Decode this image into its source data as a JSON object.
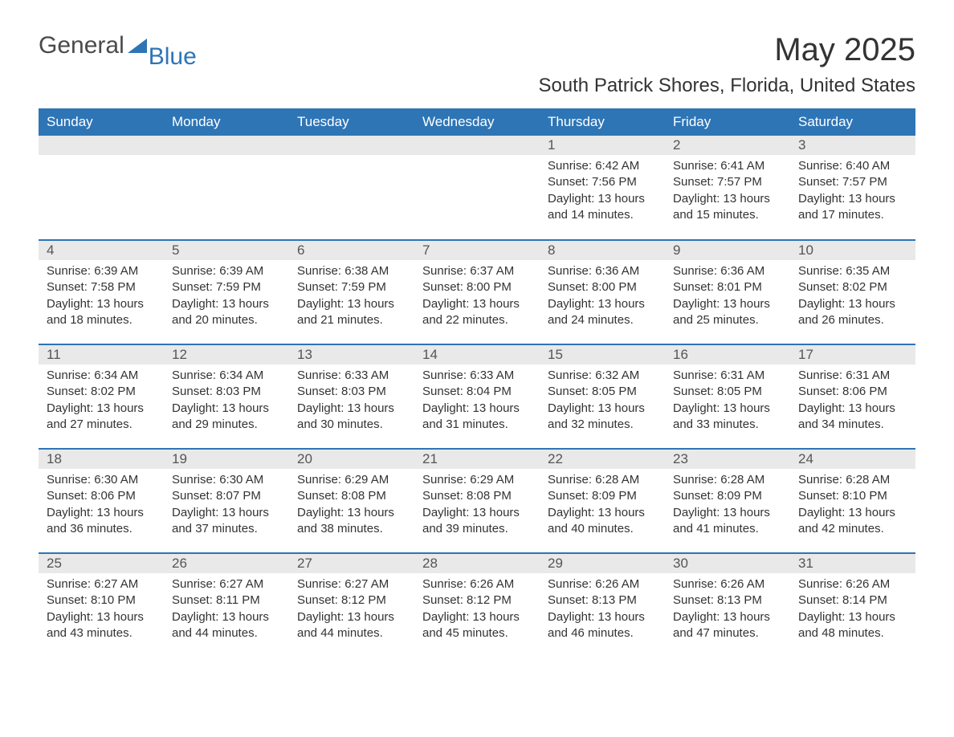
{
  "logo": {
    "text1": "General",
    "text2": "Blue",
    "color1": "#4a4a4a",
    "color2": "#2e75b6"
  },
  "title": "May 2025",
  "subtitle": "South Patrick Shores, Florida, United States",
  "colors": {
    "header_bg": "#2e75b6",
    "header_text": "#ffffff",
    "daynum_bg": "#e9e9e9",
    "daynum_text": "#555555",
    "body_text": "#333333",
    "week_border": "#2e75b6",
    "page_bg": "#ffffff"
  },
  "fonts": {
    "title_size": 40,
    "subtitle_size": 24,
    "header_size": 17,
    "daynum_size": 17,
    "body_size": 15,
    "family": "Arial"
  },
  "day_names": [
    "Sunday",
    "Monday",
    "Tuesday",
    "Wednesday",
    "Thursday",
    "Friday",
    "Saturday"
  ],
  "weeks": [
    [
      null,
      null,
      null,
      null,
      {
        "n": "1",
        "sunrise": "6:42 AM",
        "sunset": "7:56 PM",
        "daylight": "13 hours and 14 minutes."
      },
      {
        "n": "2",
        "sunrise": "6:41 AM",
        "sunset": "7:57 PM",
        "daylight": "13 hours and 15 minutes."
      },
      {
        "n": "3",
        "sunrise": "6:40 AM",
        "sunset": "7:57 PM",
        "daylight": "13 hours and 17 minutes."
      }
    ],
    [
      {
        "n": "4",
        "sunrise": "6:39 AM",
        "sunset": "7:58 PM",
        "daylight": "13 hours and 18 minutes."
      },
      {
        "n": "5",
        "sunrise": "6:39 AM",
        "sunset": "7:59 PM",
        "daylight": "13 hours and 20 minutes."
      },
      {
        "n": "6",
        "sunrise": "6:38 AM",
        "sunset": "7:59 PM",
        "daylight": "13 hours and 21 minutes."
      },
      {
        "n": "7",
        "sunrise": "6:37 AM",
        "sunset": "8:00 PM",
        "daylight": "13 hours and 22 minutes."
      },
      {
        "n": "8",
        "sunrise": "6:36 AM",
        "sunset": "8:00 PM",
        "daylight": "13 hours and 24 minutes."
      },
      {
        "n": "9",
        "sunrise": "6:36 AM",
        "sunset": "8:01 PM",
        "daylight": "13 hours and 25 minutes."
      },
      {
        "n": "10",
        "sunrise": "6:35 AM",
        "sunset": "8:02 PM",
        "daylight": "13 hours and 26 minutes."
      }
    ],
    [
      {
        "n": "11",
        "sunrise": "6:34 AM",
        "sunset": "8:02 PM",
        "daylight": "13 hours and 27 minutes."
      },
      {
        "n": "12",
        "sunrise": "6:34 AM",
        "sunset": "8:03 PM",
        "daylight": "13 hours and 29 minutes."
      },
      {
        "n": "13",
        "sunrise": "6:33 AM",
        "sunset": "8:03 PM",
        "daylight": "13 hours and 30 minutes."
      },
      {
        "n": "14",
        "sunrise": "6:33 AM",
        "sunset": "8:04 PM",
        "daylight": "13 hours and 31 minutes."
      },
      {
        "n": "15",
        "sunrise": "6:32 AM",
        "sunset": "8:05 PM",
        "daylight": "13 hours and 32 minutes."
      },
      {
        "n": "16",
        "sunrise": "6:31 AM",
        "sunset": "8:05 PM",
        "daylight": "13 hours and 33 minutes."
      },
      {
        "n": "17",
        "sunrise": "6:31 AM",
        "sunset": "8:06 PM",
        "daylight": "13 hours and 34 minutes."
      }
    ],
    [
      {
        "n": "18",
        "sunrise": "6:30 AM",
        "sunset": "8:06 PM",
        "daylight": "13 hours and 36 minutes."
      },
      {
        "n": "19",
        "sunrise": "6:30 AM",
        "sunset": "8:07 PM",
        "daylight": "13 hours and 37 minutes."
      },
      {
        "n": "20",
        "sunrise": "6:29 AM",
        "sunset": "8:08 PM",
        "daylight": "13 hours and 38 minutes."
      },
      {
        "n": "21",
        "sunrise": "6:29 AM",
        "sunset": "8:08 PM",
        "daylight": "13 hours and 39 minutes."
      },
      {
        "n": "22",
        "sunrise": "6:28 AM",
        "sunset": "8:09 PM",
        "daylight": "13 hours and 40 minutes."
      },
      {
        "n": "23",
        "sunrise": "6:28 AM",
        "sunset": "8:09 PM",
        "daylight": "13 hours and 41 minutes."
      },
      {
        "n": "24",
        "sunrise": "6:28 AM",
        "sunset": "8:10 PM",
        "daylight": "13 hours and 42 minutes."
      }
    ],
    [
      {
        "n": "25",
        "sunrise": "6:27 AM",
        "sunset": "8:10 PM",
        "daylight": "13 hours and 43 minutes."
      },
      {
        "n": "26",
        "sunrise": "6:27 AM",
        "sunset": "8:11 PM",
        "daylight": "13 hours and 44 minutes."
      },
      {
        "n": "27",
        "sunrise": "6:27 AM",
        "sunset": "8:12 PM",
        "daylight": "13 hours and 44 minutes."
      },
      {
        "n": "28",
        "sunrise": "6:26 AM",
        "sunset": "8:12 PM",
        "daylight": "13 hours and 45 minutes."
      },
      {
        "n": "29",
        "sunrise": "6:26 AM",
        "sunset": "8:13 PM",
        "daylight": "13 hours and 46 minutes."
      },
      {
        "n": "30",
        "sunrise": "6:26 AM",
        "sunset": "8:13 PM",
        "daylight": "13 hours and 47 minutes."
      },
      {
        "n": "31",
        "sunrise": "6:26 AM",
        "sunset": "8:14 PM",
        "daylight": "13 hours and 48 minutes."
      }
    ]
  ],
  "labels": {
    "sunrise": "Sunrise: ",
    "sunset": "Sunset: ",
    "daylight": "Daylight: "
  }
}
